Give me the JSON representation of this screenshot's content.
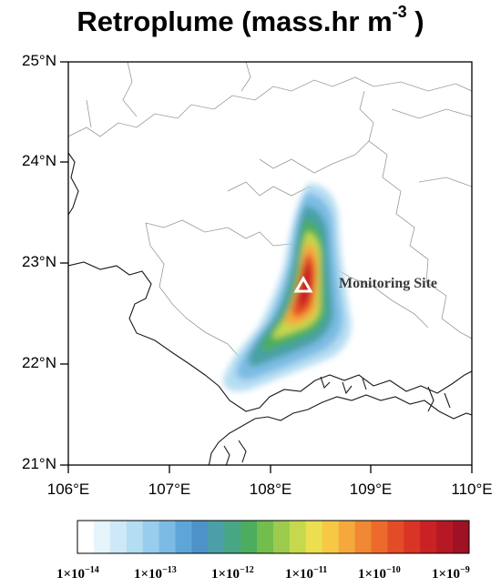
{
  "title": {
    "main": "Retroplume (mass.hr m",
    "exp": "-3",
    "close": " )"
  },
  "axes": {
    "lat_labels": [
      "25°N",
      "24°N",
      "23°N",
      "22°N",
      "21°N"
    ],
    "lon_labels": [
      "106°E",
      "107°E",
      "108°E",
      "109°E",
      "110°E"
    ],
    "lat_range": [
      21,
      25
    ],
    "lon_range": [
      106,
      110
    ]
  },
  "site": {
    "label": "Monitoring Site",
    "lon": 108.32,
    "lat": 22.79,
    "marker": "triangle-icon"
  },
  "colorbar": {
    "labels": [
      {
        "base": "1×10",
        "exp": "−14"
      },
      {
        "base": "1×10",
        "exp": "−13"
      },
      {
        "base": "1×10",
        "exp": "−12"
      },
      {
        "base": "1×10",
        "exp": "−11"
      },
      {
        "base": "1×10",
        "exp": "−10"
      },
      {
        "base": "1×10",
        "exp": "−9"
      }
    ],
    "colors": [
      "#ffffff",
      "#e6f4fb",
      "#cde9f7",
      "#b5ddf2",
      "#98cded",
      "#7cbbe4",
      "#5ea6d8",
      "#4d93c8",
      "#4aa0a6",
      "#47a684",
      "#4cad5e",
      "#72bd4b",
      "#9ccb4d",
      "#c6d84e",
      "#ecdf4f",
      "#f7c845",
      "#f5a93c",
      "#f18833",
      "#ec6a2c",
      "#e44b27",
      "#d93425",
      "#c92224",
      "#b61824",
      "#9f1225"
    ]
  }
}
